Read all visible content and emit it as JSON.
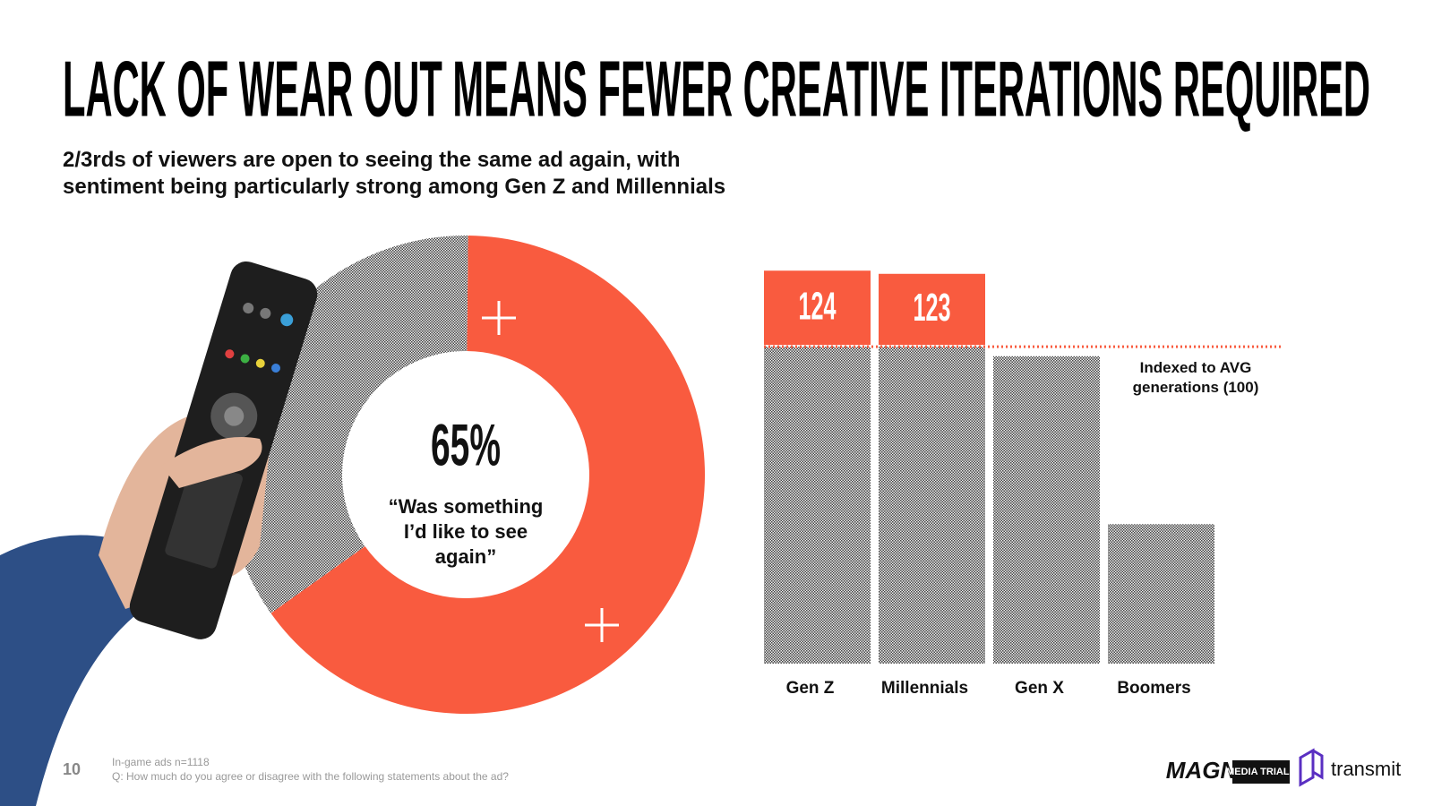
{
  "slide": {
    "title": "LACK OF WEAR OUT MEANS FEWER CREATIVE ITERATIONS REQUIRED",
    "subtitle": [
      "2/3rds of viewers are open to seeing the same ad again, with",
      "sentiment being particularly strong among Gen Z and Millennials"
    ],
    "page_number": "10",
    "notes": [
      "In-game ads n=1118",
      "Q: How much do you agree or disagree with the following statements about the ad?"
    ],
    "logos": [
      "MAGNA",
      "MEDIA TRIALS",
      "transmit"
    ]
  },
  "chart_data": [
    {
      "type": "donut",
      "values": [
        65,
        35
      ],
      "value_labels": [
        "65%",
        null
      ],
      "colors": [
        "#f95b3f",
        "hatch"
      ],
      "annotation": "“Was something I’d like to see again”"
    },
    {
      "type": "bar",
      "categories": [
        "Gen Z",
        "Millennials",
        "Gen X",
        "Boomers"
      ],
      "values": [
        124,
        123,
        97,
        44
      ],
      "value_labels": [
        "124",
        "123",
        null,
        null
      ],
      "color": "hatch",
      "above_reference_color": "#f95b3f",
      "reference_line": {
        "value": 100,
        "label": "Indexed to AVG generations (100)"
      },
      "ylim": [
        0,
        130
      ]
    }
  ]
}
